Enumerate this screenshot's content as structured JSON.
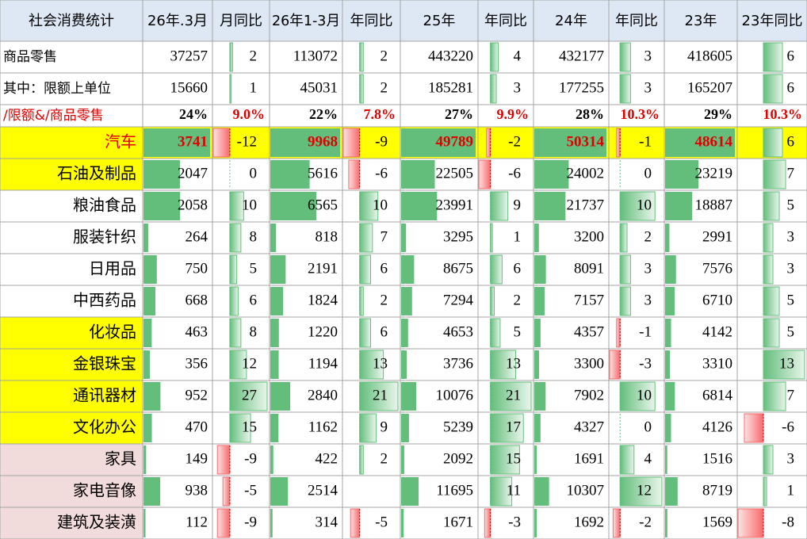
{
  "header": [
    "社会消费统计",
    "26年.3月",
    "月同比",
    "26年1-3月",
    "年同比",
    "25年",
    "年同比",
    "24年",
    "年同比",
    "23年",
    "23年同比"
  ],
  "rows": [
    {
      "label": "商品零售",
      "cells": [
        37257,
        2,
        113072,
        2,
        443220,
        4,
        432177,
        3,
        418605,
        6
      ]
    },
    {
      "label": "其中：限额上单位",
      "cells": [
        15660,
        1,
        45031,
        2,
        185281,
        3,
        177255,
        3,
        165207,
        6
      ]
    },
    {
      "label": "/限额&/商品零售",
      "cells": [
        "24%",
        "9.0%",
        "22%",
        "7.8%",
        "27%",
        "9.9%",
        "28%",
        "10.3%",
        "29%",
        "10.3%"
      ]
    },
    {
      "label": "汽车",
      "cells": [
        3741,
        -12,
        9968,
        -9,
        49789,
        -2,
        50314,
        -1,
        48614,
        6
      ]
    },
    {
      "label": "石油及制品",
      "cells": [
        2047,
        0,
        5616,
        -6,
        22505,
        -6,
        24002,
        0,
        23219,
        7
      ]
    },
    {
      "label": "粮油食品",
      "cells": [
        2058,
        10,
        6565,
        10,
        23991,
        9,
        21737,
        10,
        18887,
        5
      ]
    },
    {
      "label": "服装针织",
      "cells": [
        264,
        8,
        818,
        7,
        3295,
        1,
        3200,
        2,
        2991,
        3
      ]
    },
    {
      "label": "日用品",
      "cells": [
        750,
        5,
        2191,
        6,
        8675,
        6,
        8091,
        3,
        7576,
        3
      ]
    },
    {
      "label": "中西药品",
      "cells": [
        668,
        6,
        1824,
        2,
        7294,
        2,
        7157,
        3,
        6710,
        5
      ]
    },
    {
      "label": "化妆品",
      "cells": [
        463,
        8,
        1220,
        6,
        4653,
        5,
        4357,
        -1,
        4142,
        5
      ]
    },
    {
      "label": "金银珠宝",
      "cells": [
        356,
        12,
        1194,
        13,
        3736,
        13,
        3300,
        -3,
        3310,
        13
      ]
    },
    {
      "label": "通讯器材",
      "cells": [
        952,
        27,
        2840,
        21,
        10076,
        21,
        7902,
        10,
        6814,
        7
      ]
    },
    {
      "label": "文化办公",
      "cells": [
        470,
        15,
        1162,
        9,
        5239,
        17,
        4327,
        0,
        4126,
        -6
      ]
    },
    {
      "label": "家具",
      "cells": [
        149,
        -9,
        422,
        2,
        2092,
        15,
        1691,
        4,
        1516,
        3
      ]
    },
    {
      "label": "家电音像",
      "cells": [
        938,
        -5,
        2514,
        null,
        11695,
        11,
        10307,
        12,
        8719,
        1
      ]
    },
    {
      "label": "建筑及装潢",
      "cells": [
        112,
        -9,
        314,
        -5,
        1671,
        -3,
        1692,
        -2,
        1569,
        -8
      ]
    }
  ]
}
